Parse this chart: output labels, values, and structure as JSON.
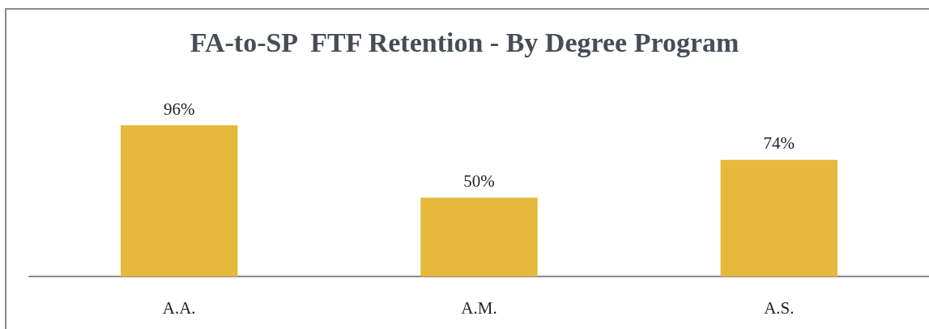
{
  "chart_data": {
    "type": "bar",
    "title": "FA-to-SP  FTF Retention - By Degree Program",
    "categories": [
      "A.A.",
      "A.M.",
      "A.S."
    ],
    "values": [
      96,
      50,
      74
    ],
    "value_labels": [
      "96%",
      "50%",
      "74%"
    ],
    "color": "#e6b93c"
  }
}
